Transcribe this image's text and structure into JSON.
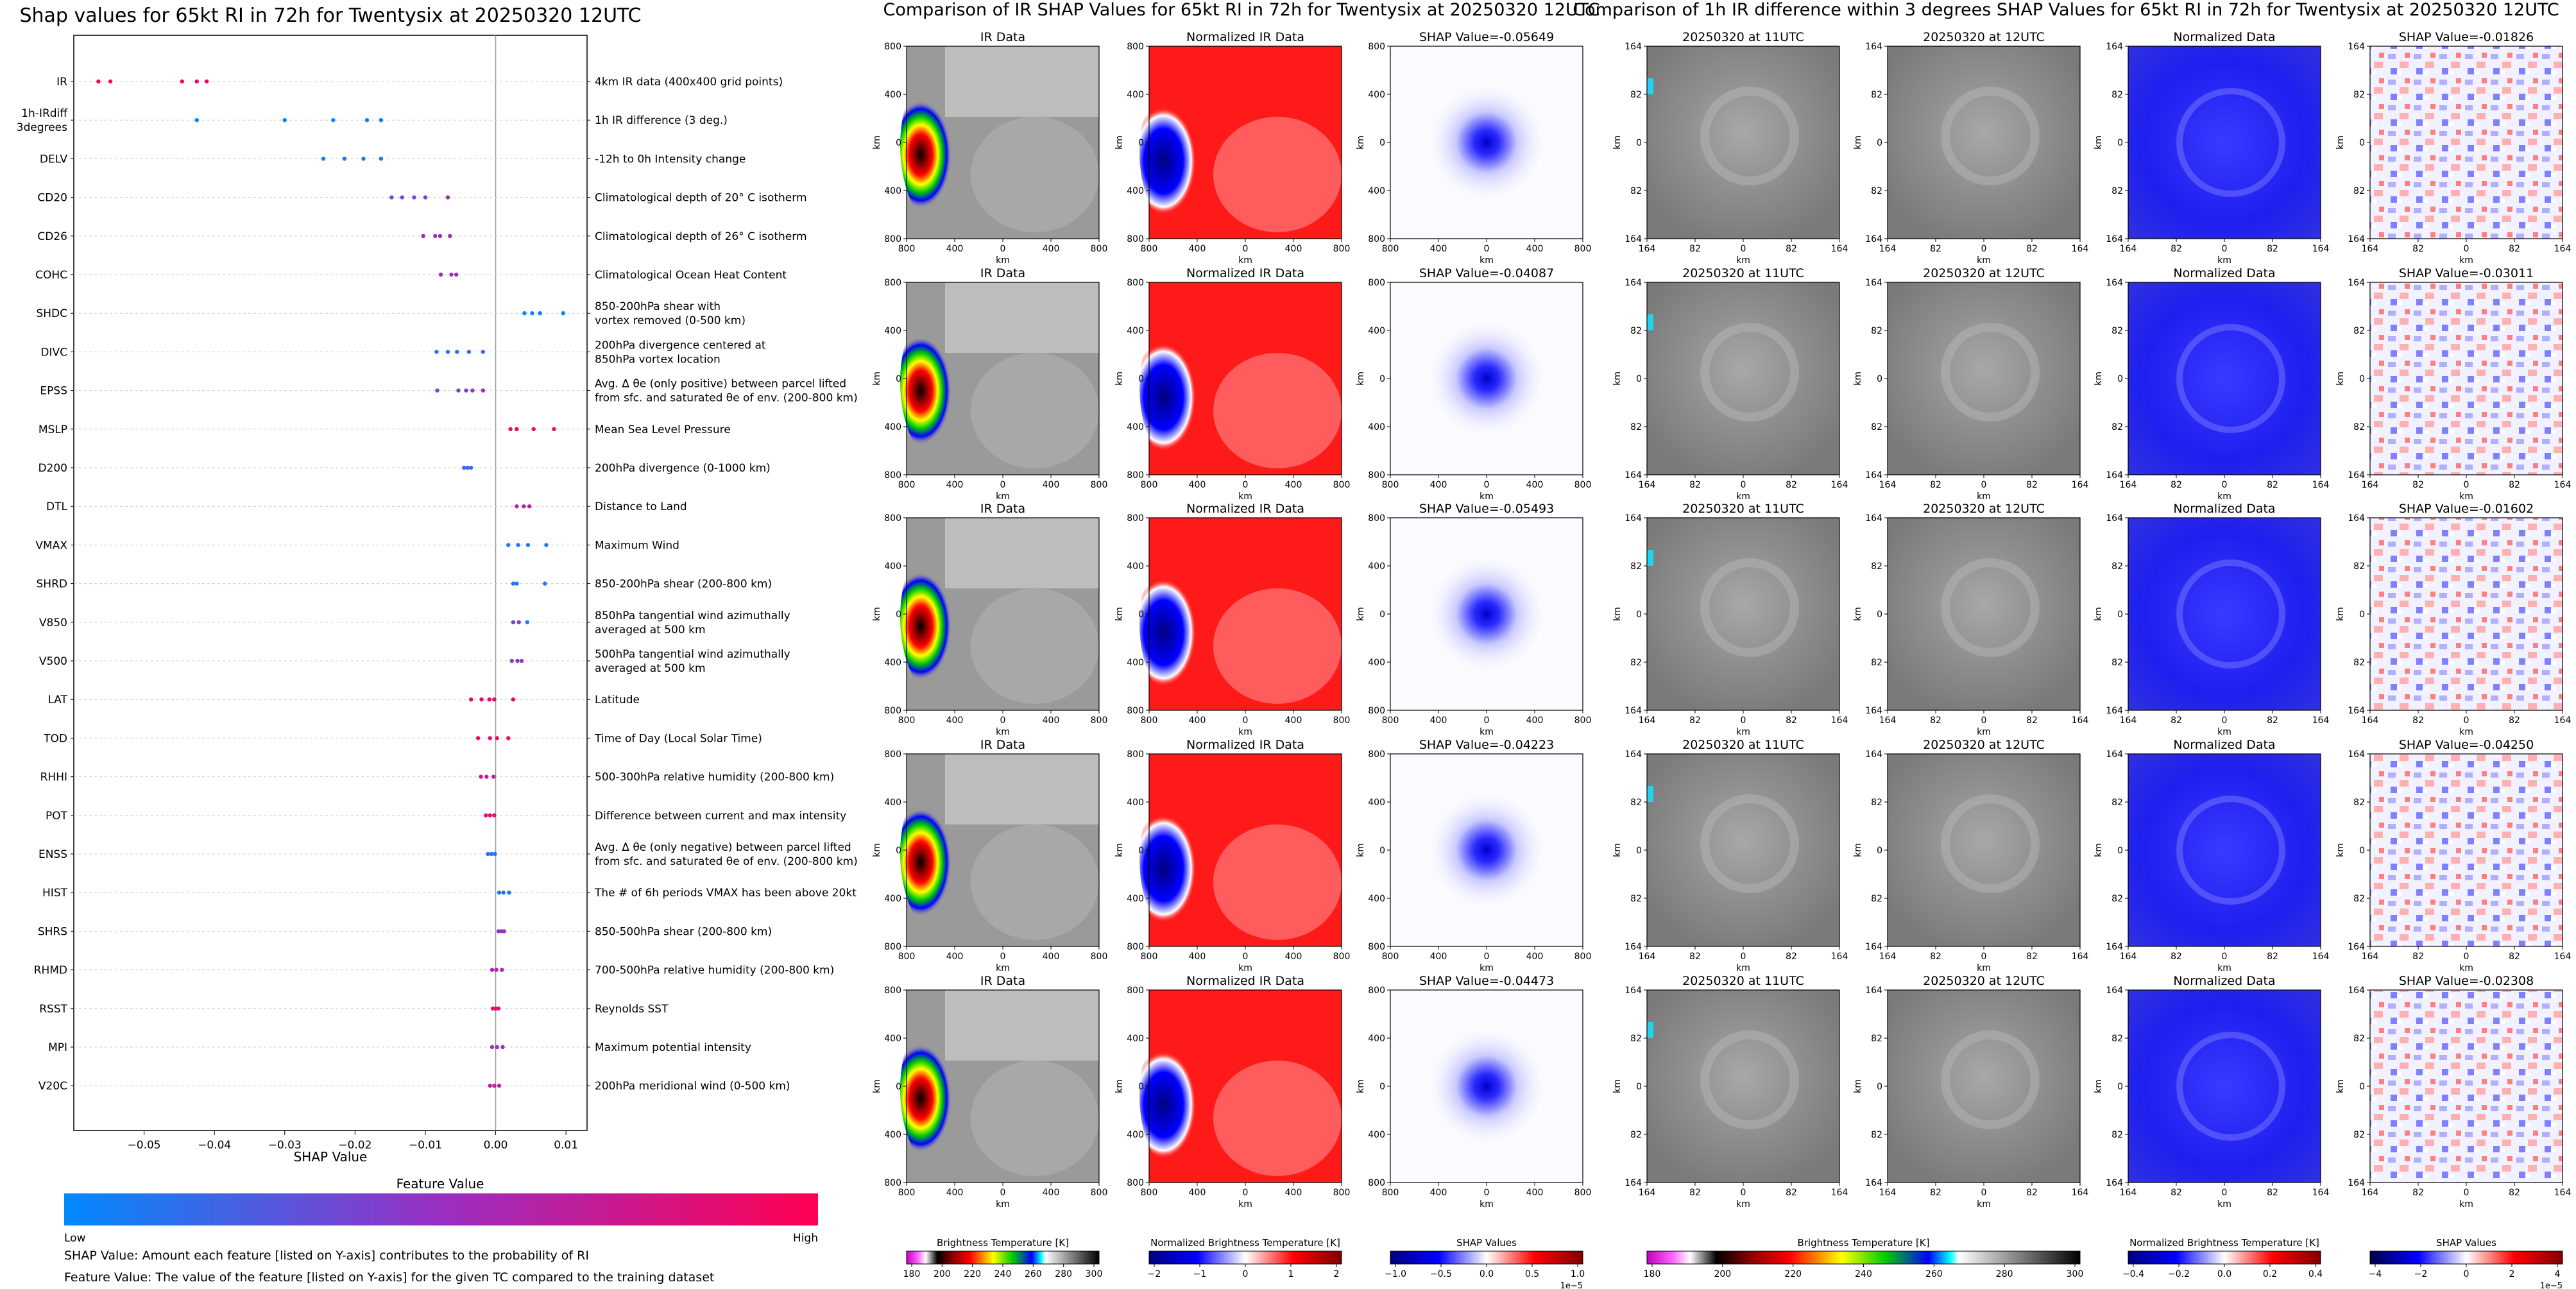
{
  "chart_data": [
    {
      "type": "scatter",
      "title": "Shap values for 65kt RI in 72h for Twentysix at 20250320 12UTC",
      "xlabel": "SHAP Value",
      "xlim": [
        -0.06,
        0.013
      ],
      "xticks": [
        -0.05,
        -0.04,
        -0.03,
        -0.02,
        -0.01,
        0.0,
        0.01
      ],
      "xtick_labels": [
        "−0.05",
        "−0.04",
        "−0.03",
        "−0.02",
        "−0.01",
        "0.00",
        "0.01"
      ],
      "features": [
        {
          "code": "IR",
          "desc": "4km IR data (400x400 grid points)",
          "points": [
            [
              -0.0565,
              1.0
            ],
            [
              -0.0548,
              0.98
            ],
            [
              -0.0446,
              0.96
            ],
            [
              -0.0425,
              0.94
            ],
            [
              -0.0411,
              0.92
            ]
          ]
        },
        {
          "code": "1h-IRdiff\n3degrees",
          "desc": "1h IR difference (3 deg.)",
          "points": [
            [
              -0.0425,
              0.0
            ],
            [
              -0.03,
              0.02
            ],
            [
              -0.0231,
              0.04
            ],
            [
              -0.0183,
              0.06
            ],
            [
              -0.0163,
              0.08
            ]
          ]
        },
        {
          "code": "DELV",
          "desc": "-12h to 0h Intensity change",
          "points": [
            [
              -0.0245,
              0.02
            ],
            [
              -0.0215,
              0.04
            ],
            [
              -0.0188,
              0.06
            ],
            [
              -0.0163,
              0.08
            ]
          ]
        },
        {
          "code": "CD20",
          "desc": "Climatological depth of 20° C isotherm",
          "points": [
            [
              -0.0148,
              0.3
            ],
            [
              -0.0133,
              0.35
            ],
            [
              -0.0116,
              0.4
            ],
            [
              -0.01,
              0.45
            ],
            [
              -0.0068,
              0.55
            ]
          ]
        },
        {
          "code": "CD26",
          "desc": "Climatological depth of 26° C isotherm",
          "points": [
            [
              -0.0103,
              0.5
            ],
            [
              -0.0086,
              0.5
            ],
            [
              -0.0079,
              0.5
            ],
            [
              -0.0065,
              0.55
            ]
          ]
        },
        {
          "code": "COHC",
          "desc": "Climatological Ocean Heat Content",
          "points": [
            [
              -0.0078,
              0.5
            ],
            [
              -0.0063,
              0.55
            ],
            [
              -0.0056,
              0.55
            ]
          ]
        },
        {
          "code": "SHDC",
          "desc": "850-200hPa shear with\nvortex removed (0-500 km)",
          "points": [
            [
              0.0041,
              0.05
            ],
            [
              0.0052,
              0.05
            ],
            [
              0.0063,
              0.05
            ],
            [
              0.0096,
              0.05
            ]
          ]
        },
        {
          "code": "DIVC",
          "desc": "200hPa divergence centered at\n850hPa vortex location",
          "points": [
            [
              -0.0084,
              0.1
            ],
            [
              -0.0068,
              0.12
            ],
            [
              -0.0055,
              0.14
            ],
            [
              -0.0038,
              0.16
            ],
            [
              -0.0018,
              0.18
            ]
          ]
        },
        {
          "code": "EPSS",
          "desc": "Avg. Δ θe (only positive) between parcel lifted\nfrom sfc. and saturated θe of env. (200-800 km)",
          "points": [
            [
              -0.0083,
              0.3
            ],
            [
              -0.0053,
              0.4
            ],
            [
              -0.0042,
              0.45
            ],
            [
              -0.0033,
              0.5
            ],
            [
              -0.0018,
              0.55
            ]
          ]
        },
        {
          "code": "MSLP",
          "desc": "Mean Sea Level Pressure",
          "points": [
            [
              0.0021,
              0.95
            ],
            [
              0.003,
              0.95
            ],
            [
              0.0054,
              0.95
            ],
            [
              0.0083,
              0.95
            ]
          ]
        },
        {
          "code": "D200",
          "desc": "200hPa divergence (0-1000 km)",
          "points": [
            [
              -0.0045,
              0.2
            ],
            [
              -0.004,
              0.2
            ],
            [
              -0.0035,
              0.2
            ]
          ]
        },
        {
          "code": "DTL",
          "desc": "Distance to Land",
          "points": [
            [
              0.003,
              0.6
            ],
            [
              0.004,
              0.6
            ],
            [
              0.0048,
              0.6
            ]
          ]
        },
        {
          "code": "VMAX",
          "desc": "Maximum Wind",
          "points": [
            [
              0.0018,
              0.1
            ],
            [
              0.0032,
              0.1
            ],
            [
              0.0046,
              0.1
            ],
            [
              0.0072,
              0.1
            ]
          ]
        },
        {
          "code": "SHRD",
          "desc": "850-200hPa shear (200-800 km)",
          "points": [
            [
              0.0025,
              0.08
            ],
            [
              0.003,
              0.08
            ],
            [
              0.007,
              0.08
            ]
          ]
        },
        {
          "code": "V850",
          "desc": "850hPa tangential wind azimuthally\naveraged at 500 km",
          "points": [
            [
              0.0025,
              0.4
            ],
            [
              0.0033,
              0.45
            ],
            [
              0.0045,
              0.1
            ]
          ]
        },
        {
          "code": "V500",
          "desc": "500hPa tangential wind azimuthally\naveraged at 500 km",
          "points": [
            [
              0.0023,
              0.45
            ],
            [
              0.0031,
              0.45
            ],
            [
              0.0037,
              0.45
            ]
          ]
        },
        {
          "code": "LAT",
          "desc": "Latitude",
          "points": [
            [
              -0.0035,
              0.95
            ],
            [
              -0.002,
              0.95
            ],
            [
              -0.0009,
              0.95
            ],
            [
              -0.0002,
              0.95
            ],
            [
              0.0025,
              0.95
            ]
          ]
        },
        {
          "code": "TOD",
          "desc": "Time of Day (Local Solar Time)",
          "points": [
            [
              -0.0025,
              0.95
            ],
            [
              -0.0008,
              0.95
            ],
            [
              0.0002,
              0.95
            ],
            [
              0.0018,
              0.95
            ]
          ]
        },
        {
          "code": "RHHI",
          "desc": "500-300hPa relative humidity (200-800 km)",
          "points": [
            [
              -0.0021,
              0.8
            ],
            [
              -0.0013,
              0.75
            ],
            [
              -0.0003,
              0.7
            ]
          ]
        },
        {
          "code": "POT",
          "desc": "Difference between current and max intensity",
          "points": [
            [
              -0.0014,
              0.85
            ],
            [
              -0.0008,
              0.85
            ],
            [
              -0.0002,
              0.85
            ]
          ]
        },
        {
          "code": "ENSS",
          "desc": "Avg. Δ θe (only negative) between parcel lifted\nfrom sfc. and saturated θe of env. (200-800 km)",
          "points": [
            [
              -0.0011,
              0.1
            ],
            [
              -0.0006,
              0.1
            ],
            [
              -0.0001,
              0.1
            ]
          ]
        },
        {
          "code": "HIST",
          "desc": "The # of 6h periods VMAX has been above 20kt",
          "points": [
            [
              0.0005,
              0.1
            ],
            [
              0.0011,
              0.1
            ],
            [
              0.0019,
              0.1
            ]
          ]
        },
        {
          "code": "SHRS",
          "desc": "850-500hPa shear (200-800 km)",
          "points": [
            [
              0.0004,
              0.45
            ],
            [
              0.0008,
              0.45
            ],
            [
              0.0012,
              0.45
            ]
          ]
        },
        {
          "code": "RHMD",
          "desc": "700-500hPa relative humidity (200-800 km)",
          "points": [
            [
              -0.0005,
              0.6
            ],
            [
              0.0001,
              0.6
            ],
            [
              0.0009,
              0.6
            ]
          ]
        },
        {
          "code": "RSST",
          "desc": "Reynolds SST",
          "points": [
            [
              -0.0004,
              0.85
            ],
            [
              0.0,
              0.85
            ],
            [
              0.0004,
              0.85
            ]
          ]
        },
        {
          "code": "MPI",
          "desc": "Maximum potential intensity",
          "points": [
            [
              -0.0005,
              0.5
            ],
            [
              0.0002,
              0.5
            ],
            [
              0.001,
              0.5
            ]
          ]
        },
        {
          "code": "V20C",
          "desc": "200hPa meridional wind (0-500 km)",
          "points": [
            [
              -0.0008,
              0.65
            ],
            [
              -0.0002,
              0.65
            ],
            [
              0.0005,
              0.65
            ]
          ]
        }
      ],
      "colorbar": {
        "title": "Feature Value",
        "low": "Low",
        "high": "High",
        "colors": [
          "#008afe",
          "#9a2fc3",
          "#ff0052"
        ]
      }
    },
    {
      "type": "heatmap",
      "title": "Comparison of IR SHAP Values for 65kt RI in 72h for Twentysix at 20250320 12UTC",
      "axis_label": "km",
      "ticks": [
        "800",
        "400",
        "0",
        "400",
        "800"
      ],
      "columns": [
        "IR Data",
        "Normalized IR Data"
      ],
      "shap_titles": [
        "SHAP Value=-0.05649",
        "SHAP Value=-0.04087",
        "SHAP Value=-0.05493",
        "SHAP Value=-0.04223",
        "SHAP Value=-0.04473"
      ],
      "colorbars": [
        {
          "label": "Brightness Temperature [K]",
          "ticks": [
            "180",
            "200",
            "220",
            "240",
            "260",
            "280",
            "300"
          ]
        },
        {
          "label": "Normalized Brightness Temperature [K]",
          "ticks": [
            "−2",
            "−1",
            "0",
            "1",
            "2"
          ]
        },
        {
          "label": "SHAP Values",
          "ticks": [
            "−1.0",
            "−0.5",
            "0.0",
            "0.5",
            "1.0"
          ],
          "exponent": "1e−5"
        }
      ]
    },
    {
      "type": "heatmap",
      "title": "Comparison of 1h IR difference within 3 degrees SHAP Values for 65kt RI in 72h for Twentysix at 20250320 12UTC",
      "axis_label": "km",
      "ticks": [
        "164",
        "82",
        "0",
        "82",
        "164"
      ],
      "columns": [
        "20250320 at 11UTC",
        "20250320 at 12UTC",
        "Normalized Data"
      ],
      "shap_titles": [
        "SHAP Value=-0.01826",
        "SHAP Value=-0.03011",
        "SHAP Value=-0.01602",
        "SHAP Value=-0.04250",
        "SHAP Value=-0.02308"
      ],
      "colorbars": [
        {
          "label": "Brightness Temperature [K]",
          "ticks": [
            "180",
            "200",
            "220",
            "240",
            "260",
            "280",
            "300"
          ]
        },
        {
          "label": "Normalized Brightness Temperature [K]",
          "ticks": [
            "−0.4",
            "−0.2",
            "0.0",
            "0.2",
            "0.4"
          ]
        },
        {
          "label": "SHAP Values",
          "ticks": [
            "−4",
            "−2",
            "0",
            "2",
            "4"
          ],
          "exponent": "1e−5"
        }
      ]
    }
  ],
  "notes": {
    "line1": "SHAP Value: Amount each feature [listed on Y-axis] contributes to the probability of RI",
    "line2": "Feature Value: The value of the feature [listed on Y-axis] for the given TC compared to the training dataset"
  }
}
